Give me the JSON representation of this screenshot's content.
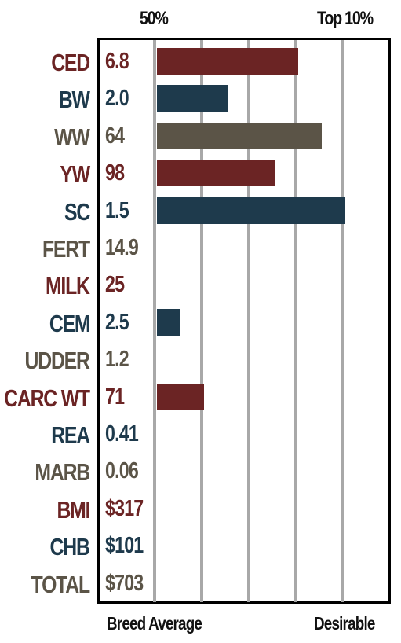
{
  "header": {
    "left_label": "50%",
    "right_label": "Top 10%"
  },
  "footer": {
    "left_label": "Breed Average",
    "right_label": "Desirable"
  },
  "colors": {
    "red": "#6b2424",
    "blue": "#1e3a4c",
    "olive": "#5b5447",
    "grid": "#a8a8a8"
  },
  "chart_data": {
    "type": "bar",
    "orientation": "horizontal",
    "x_scale_note": "bar length in percentile steps from breed average (0) to top 10% (4)",
    "xlim": [
      0,
      4
    ],
    "rows": [
      {
        "trait": "CED",
        "value": "6.8",
        "bar": 3.0,
        "color": "red"
      },
      {
        "trait": "BW",
        "value": "2.0",
        "bar": 1.5,
        "color": "blue"
      },
      {
        "trait": "WW",
        "value": "64",
        "bar": 3.5,
        "color": "olive"
      },
      {
        "trait": "YW",
        "value": "98",
        "bar": 2.5,
        "color": "red"
      },
      {
        "trait": "SC",
        "value": "1.5",
        "bar": 4.0,
        "color": "blue"
      },
      {
        "trait": "FERT",
        "value": "14.9",
        "bar": 0,
        "color": "olive"
      },
      {
        "trait": "MILK",
        "value": "25",
        "bar": 0,
        "color": "red"
      },
      {
        "trait": "CEM",
        "value": "2.5",
        "bar": 0.5,
        "color": "blue"
      },
      {
        "trait": "UDDER",
        "value": "1.2",
        "bar": 0,
        "color": "olive"
      },
      {
        "trait": "CARC WT",
        "value": "71",
        "bar": 1.0,
        "color": "red"
      },
      {
        "trait": "REA",
        "value": "0.41",
        "bar": 0,
        "color": "blue"
      },
      {
        "trait": "MARB",
        "value": "0.06",
        "bar": 0,
        "color": "olive"
      },
      {
        "trait": "BMI",
        "value": "$317",
        "bar": 0,
        "color": "red"
      },
      {
        "trait": "CHB",
        "value": "$101",
        "bar": 0,
        "color": "blue"
      },
      {
        "trait": "TOTAL",
        "value": "$703",
        "bar": 0,
        "color": "olive"
      }
    ]
  }
}
